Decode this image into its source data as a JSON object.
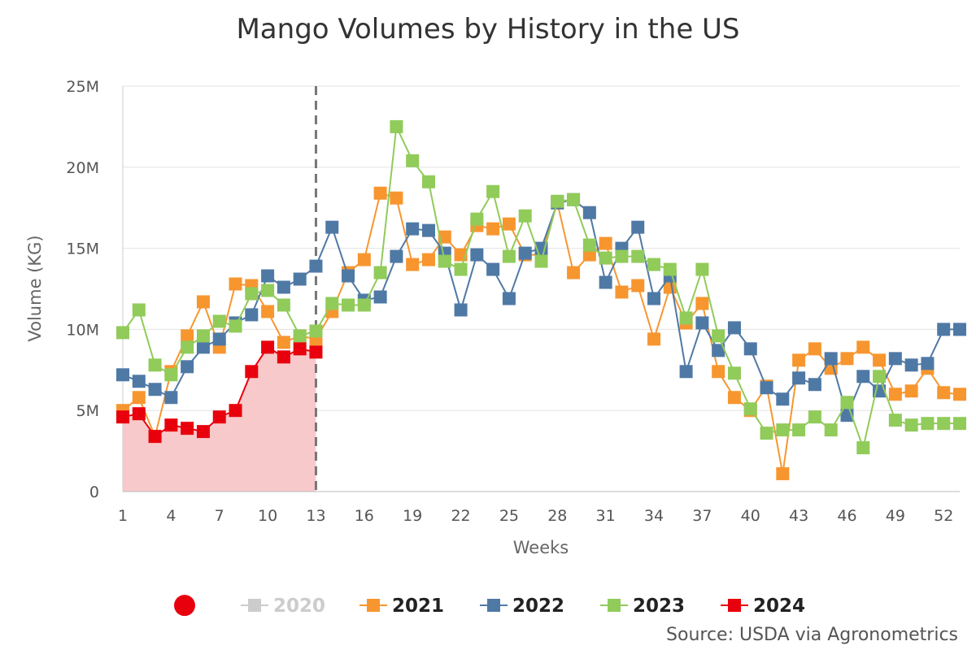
{
  "chart_data": {
    "type": "line",
    "title": "Mango Volumes by History in the US",
    "xlabel": "Weeks",
    "ylabel": "Volume (KG)",
    "ylim": [
      0,
      25000000
    ],
    "xlim": [
      1,
      53
    ],
    "y_ticks": [
      {
        "value": 0,
        "label": "0"
      },
      {
        "value": 5000000,
        "label": "5M"
      },
      {
        "value": 10000000,
        "label": "10M"
      },
      {
        "value": 15000000,
        "label": "15M"
      },
      {
        "value": 20000000,
        "label": "20M"
      },
      {
        "value": 25000000,
        "label": "25M"
      }
    ],
    "x_ticks": [
      {
        "value": 1,
        "label": "1"
      },
      {
        "value": 4,
        "label": "4"
      },
      {
        "value": 7,
        "label": "7"
      },
      {
        "value": 10,
        "label": "10"
      },
      {
        "value": 13,
        "label": "13"
      },
      {
        "value": 16,
        "label": "16"
      },
      {
        "value": 19,
        "label": "19"
      },
      {
        "value": 22,
        "label": "22"
      },
      {
        "value": 25,
        "label": "25"
      },
      {
        "value": 28,
        "label": "28"
      },
      {
        "value": 31,
        "label": "31"
      },
      {
        "value": 34,
        "label": "34"
      },
      {
        "value": 37,
        "label": "37"
      },
      {
        "value": 40,
        "label": "40"
      },
      {
        "value": 43,
        "label": "43"
      },
      {
        "value": 46,
        "label": "46"
      },
      {
        "value": 49,
        "label": "49"
      },
      {
        "value": 52,
        "label": "52"
      }
    ],
    "current_week": 13,
    "series": [
      {
        "name": "2020",
        "color": "#c8c8c8",
        "visible": false,
        "x": [],
        "values": []
      },
      {
        "name": "2021",
        "color": "#f7962f",
        "visible": true,
        "x": [
          1,
          2,
          3,
          4,
          5,
          6,
          7,
          8,
          9,
          10,
          11,
          12,
          13,
          14,
          15,
          16,
          17,
          18,
          19,
          20,
          21,
          22,
          23,
          24,
          25,
          26,
          27,
          28,
          29,
          30,
          31,
          32,
          33,
          34,
          35,
          36,
          37,
          38,
          39,
          40,
          41,
          42,
          43,
          44,
          45,
          46,
          47,
          48,
          49,
          50,
          51,
          52,
          53
        ],
        "values": [
          5000000,
          5800000,
          3400000,
          7400000,
          9600000,
          11700000,
          8900000,
          12800000,
          12700000,
          11100000,
          9200000,
          9600000,
          9400000,
          11100000,
          13500000,
          14300000,
          18400000,
          18100000,
          14000000,
          14300000,
          15700000,
          14600000,
          16400000,
          16200000,
          16500000,
          14600000,
          14600000,
          17800000,
          13500000,
          14600000,
          15300000,
          12300000,
          12700000,
          9400000,
          12600000,
          10400000,
          11600000,
          7400000,
          5800000,
          5000000,
          6500000,
          1100000,
          8100000,
          8800000,
          7600000,
          8200000,
          8900000,
          8100000,
          6000000,
          6200000,
          7600000,
          6100000,
          6000000
        ]
      },
      {
        "name": "2022",
        "color": "#4f79a5",
        "visible": true,
        "x": [
          1,
          2,
          3,
          4,
          5,
          6,
          7,
          8,
          9,
          10,
          11,
          12,
          13,
          14,
          15,
          16,
          17,
          18,
          19,
          20,
          21,
          22,
          23,
          24,
          25,
          26,
          27,
          28,
          29,
          30,
          31,
          32,
          33,
          34,
          35,
          36,
          37,
          38,
          39,
          40,
          41,
          42,
          43,
          44,
          45,
          46,
          47,
          48,
          49,
          50,
          51,
          52,
          53
        ],
        "values": [
          7200000,
          6800000,
          6300000,
          5800000,
          7700000,
          8900000,
          9400000,
          10400000,
          10900000,
          13300000,
          12600000,
          13100000,
          13900000,
          16300000,
          13300000,
          11800000,
          12000000,
          14500000,
          16200000,
          16100000,
          14700000,
          11200000,
          14600000,
          13700000,
          11900000,
          14700000,
          15000000,
          17800000,
          18000000,
          17200000,
          12900000,
          15000000,
          16300000,
          11900000,
          13300000,
          7400000,
          10400000,
          8700000,
          10100000,
          8800000,
          6400000,
          5700000,
          7000000,
          6600000,
          8200000,
          4700000,
          7100000,
          6200000,
          8200000,
          7800000,
          7900000,
          10000000,
          10000000
        ]
      },
      {
        "name": "2023",
        "color": "#91cb5a",
        "visible": true,
        "x": [
          1,
          2,
          3,
          4,
          5,
          6,
          7,
          8,
          9,
          10,
          11,
          12,
          13,
          14,
          15,
          16,
          17,
          18,
          19,
          20,
          21,
          22,
          23,
          24,
          25,
          26,
          27,
          28,
          29,
          30,
          31,
          32,
          33,
          34,
          35,
          36,
          37,
          38,
          39,
          40,
          41,
          42,
          43,
          44,
          45,
          46,
          47,
          48,
          49,
          50,
          51,
          52,
          53
        ],
        "values": [
          9800000,
          11200000,
          7800000,
          7200000,
          8900000,
          9600000,
          10500000,
          10200000,
          12200000,
          12400000,
          11500000,
          9600000,
          9900000,
          11600000,
          11500000,
          11500000,
          13500000,
          22500000,
          20400000,
          19100000,
          14200000,
          13700000,
          16800000,
          18500000,
          14500000,
          17000000,
          14200000,
          17900000,
          18000000,
          15200000,
          14400000,
          14500000,
          14500000,
          14000000,
          13700000,
          10700000,
          13700000,
          9600000,
          7300000,
          5100000,
          3600000,
          3800000,
          3800000,
          4600000,
          3800000,
          5500000,
          2700000,
          7100000,
          4400000,
          4100000,
          4200000,
          4200000,
          4200000
        ]
      },
      {
        "name": "2024",
        "color": "#e8000d",
        "visible": true,
        "area": true,
        "area_color": "#f8c9cb",
        "x": [
          1,
          2,
          3,
          4,
          5,
          6,
          7,
          8,
          9,
          10,
          11,
          12,
          13
        ],
        "values": [
          4600000,
          4800000,
          3400000,
          4100000,
          3900000,
          3700000,
          4600000,
          5000000,
          7400000,
          8900000,
          8300000,
          8800000,
          8600000
        ]
      }
    ],
    "legend": {
      "position": "bottom",
      "marker_label": "●",
      "items": [
        "2020",
        "2021",
        "2022",
        "2023",
        "2024"
      ]
    },
    "source": "Source: USDA via Agronometrics"
  }
}
